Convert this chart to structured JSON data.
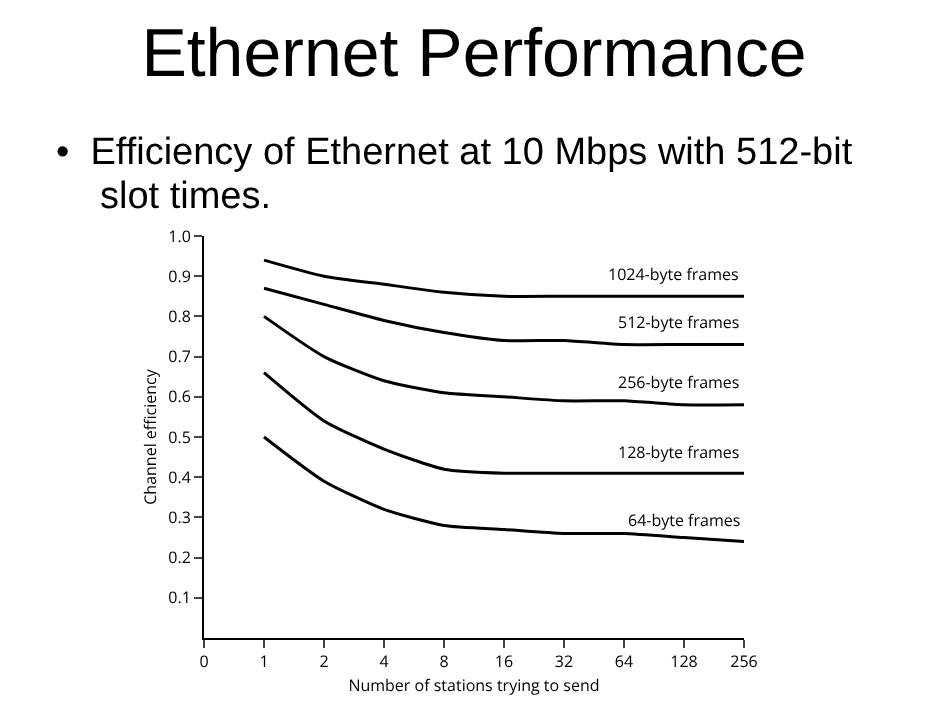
{
  "chart_data": {
    "type": "line",
    "title": "Ethernet Performance",
    "subtitle": "•  Efficiency of Ethernet at 10 Mbps with 512-bit slot times.",
    "xlabel": "Number of stations trying to send",
    "ylabel": "Channel efficiency",
    "log": "x",
    "x": [
      1,
      2,
      4,
      8,
      16,
      32,
      64,
      128,
      256
    ],
    "series": [
      {
        "name": "1024-byte frames",
        "color": "#000000",
        "values": [
          0.94,
          0.9,
          0.88,
          0.86,
          0.85,
          0.85,
          0.85,
          0.85,
          0.85
        ]
      },
      {
        "name": "512-byte frames",
        "color": "#000000",
        "values": [
          0.87,
          0.83,
          0.79,
          0.76,
          0.74,
          0.74,
          0.73,
          0.73,
          0.73
        ]
      },
      {
        "name": "256-byte frames",
        "color": "#000000",
        "values": [
          0.8,
          0.7,
          0.64,
          0.61,
          0.6,
          0.59,
          0.59,
          0.58,
          0.58
        ]
      },
      {
        "name": "128-byte frames",
        "color": "#000000",
        "values": [
          0.66,
          0.54,
          0.47,
          0.42,
          0.41,
          0.41,
          0.41,
          0.41,
          0.41
        ]
      },
      {
        "name": "64-byte frames",
        "color": "#000000",
        "values": [
          0.5,
          0.39,
          0.32,
          0.28,
          0.27,
          0.26,
          0.26,
          0.25,
          0.24
        ]
      }
    ],
    "xlim": [
      0.5,
      256
    ],
    "xticks": [
      {
        "value": 0.5,
        "label": "0"
      },
      1,
      2,
      4,
      8,
      16,
      32,
      64,
      128,
      256
    ],
    "ylim": [
      0,
      1
    ],
    "yticks": [
      0.1,
      0.2,
      0.3,
      0.4,
      0.5,
      0.6,
      0.7,
      0.8,
      0.9,
      {
        "value": 1,
        "label": "1.0"
      }
    ],
    "grid": false,
    "legend": false,
    "marker": "none",
    "line_style": "solid"
  }
}
